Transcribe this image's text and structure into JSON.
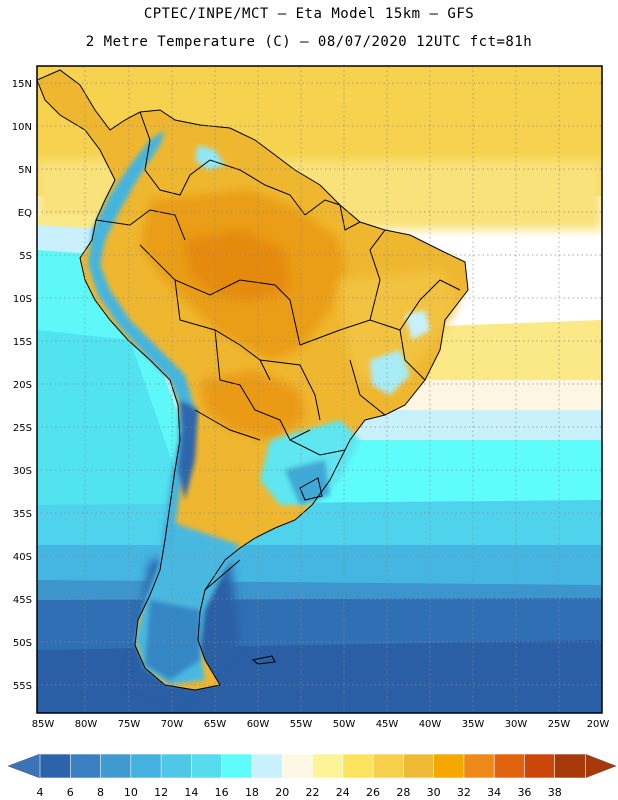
{
  "header": {
    "line1": "CPTEC/INPE/MCT –  Eta Model 15km – GFS",
    "line2": "2 Metre Temperature (C) – 08/07/2020 12UTC fct=81h"
  },
  "map": {
    "lat_labels": [
      "15N",
      "10N",
      "5N",
      "EQ",
      "5S",
      "10S",
      "15S",
      "20S",
      "25S",
      "30S",
      "35S",
      "40S",
      "45S",
      "50S",
      "55S"
    ],
    "lon_labels": [
      "85W",
      "80W",
      "75W",
      "70W",
      "65W",
      "60W",
      "55W",
      "50W",
      "45W",
      "40W",
      "35W",
      "30W",
      "25W",
      "20W"
    ]
  },
  "colorbar": {
    "labels": [
      "4",
      "6",
      "8",
      "10",
      "12",
      "14",
      "16",
      "18",
      "20",
      "22",
      "24",
      "26",
      "28",
      "30",
      "32",
      "34",
      "36",
      "38"
    ],
    "colors": [
      "#2d63a8",
      "#3a7fc0",
      "#3f9ad0",
      "#45b1df",
      "#4fc8e8",
      "#57dcef",
      "#5ffcfc",
      "#c8f1fb",
      "#fdf8e4",
      "#fdf49a",
      "#fce35e",
      "#f6cf4c",
      "#efbb36",
      "#f5a700",
      "#ee8a1a",
      "#e0640e",
      "#c94709",
      "#a5390a"
    ],
    "low_color": "#3a73b8",
    "high_color": "#a8380a"
  }
}
